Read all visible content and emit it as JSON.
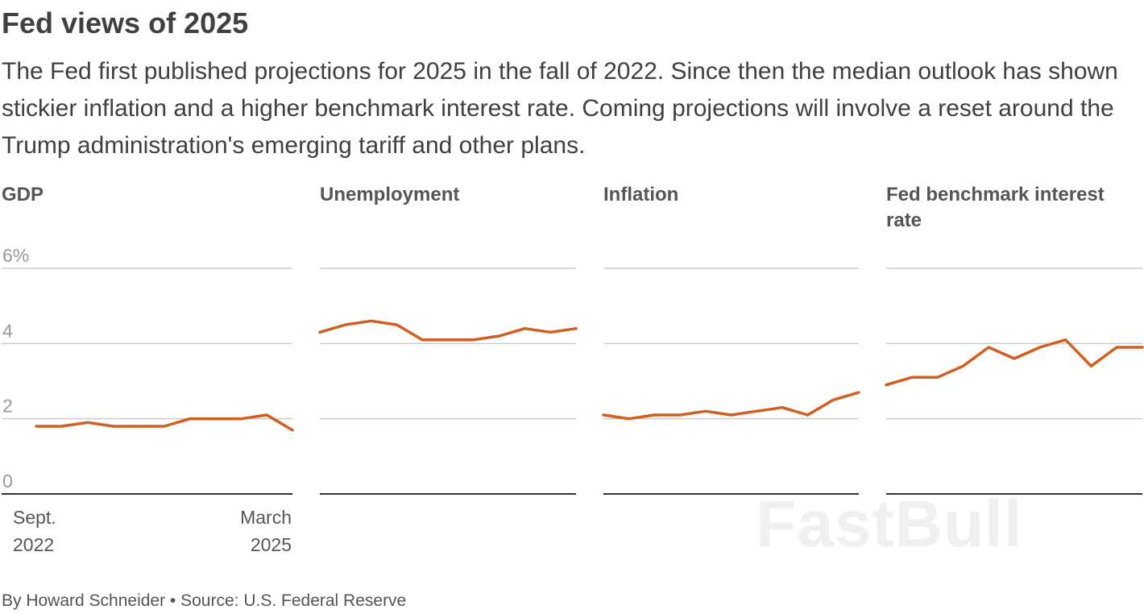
{
  "header": {
    "title": "Fed views of 2025",
    "subtitle": "The Fed first published projections for 2025 in the fall of 2022. Since then the median outlook has shown stickier inflation and a higher benchmark interest rate. Coming projections will involve a reset around the Trump administration's emerging tariff and other plans."
  },
  "footer": {
    "text": "By Howard Schneider • Source: U.S. Federal Reserve"
  },
  "watermark": "FastBull",
  "colors": {
    "line": "#d15f1f",
    "grid": "#cccccc",
    "axis": "#333333",
    "tick_label": "#999999"
  },
  "chart_data": [
    {
      "type": "line",
      "title": "GDP",
      "ylim": [
        0,
        6
      ],
      "yticks": [
        "6%",
        "4",
        "2",
        "0"
      ],
      "x_start_label": [
        "Sept.",
        "2022"
      ],
      "x_end_label": [
        "March",
        "2025"
      ],
      "values": [
        1.8,
        1.8,
        1.9,
        1.8,
        1.8,
        1.8,
        2.0,
        2.0,
        2.0,
        2.1,
        1.7
      ],
      "grid": true
    },
    {
      "type": "line",
      "title": "Unemployment",
      "ylim": [
        0,
        6
      ],
      "values": [
        4.3,
        4.5,
        4.6,
        4.5,
        4.1,
        4.1,
        4.1,
        4.2,
        4.4,
        4.3,
        4.4
      ],
      "grid": true
    },
    {
      "type": "line",
      "title": "Inflation",
      "ylim": [
        0,
        6
      ],
      "values": [
        2.1,
        2.0,
        2.1,
        2.1,
        2.2,
        2.1,
        2.2,
        2.3,
        2.1,
        2.5,
        2.7
      ],
      "grid": true
    },
    {
      "type": "line",
      "title": "Fed benchmark interest rate",
      "ylim": [
        0,
        6
      ],
      "values": [
        2.9,
        3.1,
        3.1,
        3.4,
        3.9,
        3.6,
        3.9,
        4.1,
        3.4,
        3.9,
        3.9
      ],
      "grid": true
    }
  ]
}
